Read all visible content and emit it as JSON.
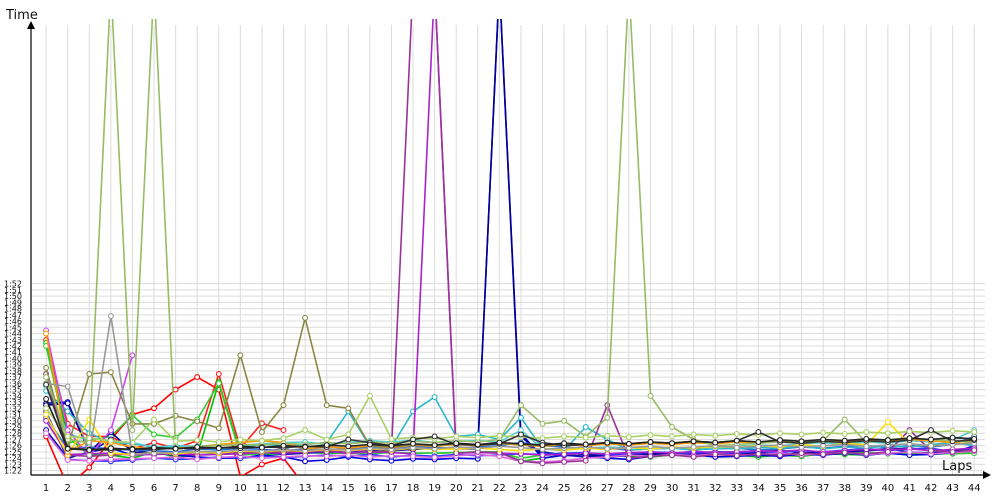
{
  "chart_data": {
    "type": "line",
    "title": "",
    "xlabel": "Laps",
    "ylabel": "Time",
    "x_ticks": [
      "1",
      "2",
      "3",
      "4",
      "5",
      "6",
      "7",
      "8",
      "9",
      "10",
      "11",
      "12",
      "13",
      "14",
      "15",
      "16",
      "17",
      "18",
      "19",
      "20",
      "21",
      "22",
      "23",
      "24",
      "25",
      "26",
      "27",
      "28",
      "29",
      "30",
      "31",
      "32",
      "33",
      "34",
      "35",
      "36",
      "37",
      "38",
      "39",
      "40",
      "41",
      "42",
      "43",
      "44"
    ],
    "y_ticks": [
      "1:22",
      "1:23",
      "1:24",
      "1:25",
      "1:26",
      "1:27",
      "1:28",
      "1:29",
      "1:30",
      "1:31",
      "1:32",
      "1:33",
      "1:34",
      "1:35",
      "1:36",
      "1:37",
      "1:38",
      "1:39",
      "1:40",
      "1:41",
      "1:42",
      "1:43",
      "1:44",
      "1:45",
      "1:46",
      "1:47",
      "1:48",
      "1:49",
      "1:50",
      "1:51",
      "1:52"
    ],
    "xlim": [
      0.3,
      44.5
    ],
    "ylim_seconds": [
      81.3,
      153.5
    ],
    "grid": true,
    "legend": "none",
    "units": "lap time in seconds",
    "series": [
      {
        "color": "#ff0000",
        "values": [
          87.5,
          79.5,
          82.5,
          87,
          91,
          92,
          95,
          97,
          95,
          81,
          83,
          84,
          79.5,
          79,
          79,
          77.5,
          78,
          77.5,
          78,
          78,
          78,
          77.5,
          77.8,
          77.8,
          78,
          78,
          77.5,
          77.5,
          78,
          77.8,
          78,
          77.5,
          77.8,
          77.5,
          77.5,
          78,
          77.5,
          78,
          77.8,
          77.5,
          78,
          77.5,
          78,
          78
        ]
      },
      {
        "color": "#ff2020",
        "values": [
          103,
          89.5,
          87.5,
          87.5,
          85.5,
          86.5,
          85.6,
          86.8,
          97.5,
          85.6,
          89.6,
          88.5,
          null,
          null,
          null,
          null,
          null,
          null,
          null,
          null,
          null,
          null,
          null,
          null,
          null,
          null,
          null,
          null,
          null,
          null,
          null,
          null,
          null,
          null,
          null,
          null,
          null,
          null,
          null,
          null,
          null,
          null,
          null,
          null
        ]
      },
      {
        "color": "#00c000",
        "values": [
          102.5,
          87.5,
          84.5,
          84.5,
          84,
          85,
          84.2,
          84.5,
          96.2,
          84.8,
          84.6,
          84.7,
          84.9,
          84.8,
          84.8,
          85,
          84.9,
          84.8,
          84.8,
          84.9,
          85,
          85,
          83.5,
          84,
          84.5,
          84.3,
          84.6,
          84.3,
          84.2,
          84.5,
          84.6,
          84.7,
          84.5,
          84.2,
          84.5,
          84.3,
          84.7,
          84.6,
          84.5,
          84.8,
          84.8,
          84.6,
          84.8,
          84.9
        ]
      },
      {
        "color": "#33cc33",
        "values": [
          102,
          86.5,
          86.8,
          87.5,
          90.9,
          87.8,
          87.3,
          90.2,
          96,
          84.5,
          84.7,
          84.8,
          85,
          84.9,
          84.8,
          84.7,
          84.9,
          84.8,
          84.8,
          84.9,
          85,
          84.9,
          84,
          84.5,
          84.6,
          84.8,
          84.7,
          84.5,
          84.6,
          84.7,
          84.6,
          84.6,
          84.5,
          84.8,
          84.7,
          84.6,
          84.6,
          84.8,
          84.9,
          84.7,
          84.8,
          84.9,
          84.7,
          84.8
        ]
      },
      {
        "color": "#0000dd",
        "values": [
          92.8,
          93,
          85,
          85.6,
          84.5,
          84.8,
          84.5,
          84.2,
          84,
          84,
          84.5,
          84.2,
          83.5,
          83.7,
          84.2,
          83.8,
          83.6,
          83.9,
          83.8,
          84,
          83.9,
          null,
          88,
          84,
          84.5,
          84.2,
          84,
          83.8,
          84.3,
          84.6,
          84.5,
          84.2,
          84.3,
          84.5,
          84.3,
          84.6,
          84.5,
          84.8,
          84.5,
          84.8,
          84.5,
          84.6,
          84.9,
          86
        ]
      },
      {
        "color": "#1010aa",
        "values": [
          88.5,
          84,
          85,
          87,
          85.5,
          84.6,
          84.9,
          85,
          84.8,
          84.7,
          85,
          84.6,
          84.8,
          85,
          84.9,
          85.2,
          85.5,
          85.6,
          85.6,
          85.5,
          85.6,
          160,
          86.5,
          85,
          84.5,
          84.3,
          84.2,
          84.4,
          84.6,
          84.8,
          84.9,
          85,
          85,
          85.2,
          85.3,
          84.8,
          85,
          85.1,
          85.3,
          85.5,
          85,
          84.8,
          85.2,
          85.5
        ]
      },
      {
        "color": "#000099",
        "values": [
          92.5,
          92.8,
          85,
          88.2,
          85,
          84.8,
          84.9,
          85,
          84.7,
          84.8,
          85,
          85.5,
          85,
          85.2,
          85.6,
          85.4,
          85.2,
          85.4,
          85.6,
          85.5,
          85.5,
          160,
          87.5,
          84.5,
          84.8,
          84.6,
          84.3,
          84.6,
          84.9,
          84.5,
          84.6,
          84.8,
          84.6,
          84.9,
          84.5,
          84.8,
          84.9,
          85,
          85.2,
          85.4,
          85.6,
          85.2,
          85,
          85.3
        ]
      },
      {
        "color": "#3333ff",
        "values": [
          91.5,
          83.8,
          83.6,
          83.5,
          83.7,
          84,
          83.8,
          83.9,
          84.2,
          84,
          84.3,
          84.1,
          84.3,
          84.5,
          84.3,
          84.6,
          84.2,
          84.5,
          84.3,
          84.6,
          84.4,
          84.5,
          84.7,
          84.6,
          84.8,
          84.9,
          84.5,
          84.7,
          85,
          84.9,
          84.8,
          85,
          84.8,
          85.1,
          84.9,
          85.2,
          85,
          85.3,
          85.5,
          85.2,
          85.5,
          85.6,
          85,
          85.4
        ]
      },
      {
        "color": "#2a6bd6",
        "values": [
          90.5,
          85.5,
          85.8,
          85.5,
          85.3,
          85.2,
          85,
          85.5,
          85.3,
          85.6,
          85.4,
          85.2,
          85.5,
          85.3,
          85.6,
          85.8,
          85.6,
          85.9,
          85.7,
          85.6,
          85.8,
          86,
          86.5,
          86,
          85.8,
          85.5,
          85.6,
          85.3,
          85.5,
          85.6,
          85.4,
          85.5,
          85.6,
          85.3,
          85.5,
          85.8,
          85.6,
          85.9,
          86,
          85.7,
          86,
          85.8,
          86.2,
          87.5
        ]
      },
      {
        "color": "#2ab8c8",
        "values": [
          94.8,
          91.5,
          88,
          86.5,
          86.3,
          85.8,
          85.8,
          85.6,
          85.5,
          85.8,
          86.2,
          86,
          86.2,
          86.5,
          91.5,
          85.9,
          85.8,
          91.5,
          93.8,
          87.5,
          87.8,
          87,
          90.5,
          85.5,
          85.2,
          89,
          87,
          85.3,
          85.5,
          85.6,
          85.3,
          85.6,
          85.5,
          85.7,
          85.6,
          85.9,
          85.5,
          85.8,
          85.6,
          86,
          85.8,
          86.2,
          86.5,
          86
        ]
      },
      {
        "color": "#55cccc",
        "values": [
          95.5,
          88,
          86.8,
          86.5,
          86.5,
          85.8,
          86,
          85.9,
          86.2,
          86.1,
          86.3,
          86.5,
          86.6,
          86.2,
          86.5,
          86.8,
          86.6,
          86.9,
          86.5,
          86.7,
          86.8,
          86.6,
          88.5,
          85.5,
          85.3,
          85.6,
          85.8,
          85.6,
          85.9,
          85.5,
          85.8,
          85.6,
          85.9,
          86.1,
          86,
          86.3,
          86.5,
          86.2,
          86.6,
          86.4,
          86.8,
          86.6,
          86.9,
          88.5
        ]
      },
      {
        "color": "#aa22cc",
        "values": [
          90,
          84.6,
          84.7,
          84.8,
          84.5,
          84.6,
          84.7,
          84.5,
          84.6,
          84.7,
          84.9,
          84.8,
          85,
          85.1,
          84.8,
          85,
          84.9,
          84.7,
          160,
          84.8,
          84.9,
          84.8,
          84.7,
          84.5,
          84.6,
          84.8,
          84.7,
          84.9,
          85,
          84.8,
          85.1,
          84.9,
          85,
          85.2,
          85.1,
          85.3,
          85,
          85.2,
          85.4,
          85.3,
          85.5,
          85.2,
          85.4,
          85.6
        ]
      },
      {
        "color": "#cc44ee",
        "values": [
          104.5,
          88.5,
          84.3,
          88.5,
          100.5,
          null,
          null,
          null,
          null,
          null,
          null,
          null,
          null,
          null,
          null,
          null,
          null,
          null,
          null,
          null,
          null,
          null,
          null,
          null,
          null,
          null,
          null,
          null,
          null,
          null,
          null,
          null,
          null,
          null,
          null,
          null,
          null,
          null,
          null,
          null,
          null,
          null,
          null,
          null
        ]
      },
      {
        "color": "#dd66dd",
        "values": [
          88,
          83.7,
          83.6,
          83.8,
          83.9,
          84,
          84.2,
          83.8,
          84.1,
          84.3,
          84,
          84.2,
          84.4,
          84.3,
          84.5,
          84.2,
          84.4,
          84.3,
          84.1,
          84.4,
          84.6,
          84.3,
          83.5,
          83.4,
          83.6,
          84,
          84.2,
          84.5,
          84.3,
          84.6,
          84.4,
          84.7,
          84.5,
          84.6,
          84.8,
          84.5,
          84.7,
          84.9,
          84.6,
          84.8,
          85,
          84.7,
          84.9,
          85.1
        ]
      },
      {
        "color": "#993399",
        "values": [
          97.5,
          84.5,
          84.3,
          84.5,
          84.7,
          84.8,
          84.6,
          84.9,
          85,
          84.8,
          85.1,
          84.9,
          85.2,
          85,
          85.3,
          85.1,
          85,
          160,
          160,
          84.8,
          85,
          84.9,
          83.5,
          83.2,
          83.4,
          83.6,
          92.5,
          84,
          84.3,
          84.5,
          84.2,
          84.6,
          84.4,
          84.7,
          84.5,
          84.8,
          84.6,
          84.9,
          84.7,
          85,
          88.5,
          85.2,
          85,
          85.3
        ]
      },
      {
        "color": "#ffdd00",
        "values": [
          91,
          84.5,
          90.2,
          84.8,
          84.6,
          84.9,
          84.7,
          85,
          84.8,
          85.2,
          85,
          85.3,
          85.1,
          85.4,
          85.2,
          85.5,
          85.3,
          85.6,
          85.4,
          85.5,
          85.6,
          85.4,
          85.2,
          85.5,
          85.3,
          85.6,
          85.4,
          85.7,
          85.5,
          85.8,
          85.6,
          85.9,
          85.7,
          86,
          85.8,
          86.2,
          85.9,
          86.4,
          86.1,
          89.8,
          86.3,
          86,
          86.2,
          86.5
        ]
      },
      {
        "color": "#ff9900",
        "values": [
          104,
          85,
          86.8,
          86.5,
          85.8,
          85.5,
          85.6,
          85.8,
          86.2,
          86.5,
          86.8,
          86.5,
          85.5,
          85.8,
          85.6,
          86,
          85.7,
          86.1,
          85.9,
          86.2,
          86,
          86.4,
          86.1,
          85.9,
          86.2,
          86,
          86.3,
          86.1,
          86.4,
          86.2,
          86.5,
          86.3,
          86.6,
          86.4,
          86.7,
          86.5,
          86.8,
          86.6,
          86.9,
          86.7,
          87,
          86.8,
          86.5,
          86.8
        ]
      },
      {
        "color": "#888844",
        "values": [
          98.5,
          85.8,
          97.5,
          97.8,
          89.5,
          89.5,
          90.8,
          89.9,
          88.8,
          100.5,
          88.2,
          92.5,
          106.5,
          92.5,
          92,
          86,
          85.8,
          86.2,
          86,
          86.3,
          86.1,
          86.5,
          86.2,
          86,
          86.4,
          86.1,
          86.5,
          86.3,
          86.6,
          86.4,
          86.7,
          86.5,
          86.8,
          86.6,
          86.9,
          86.7,
          87,
          86.8,
          87.1,
          86.9,
          87.2,
          87,
          87.3,
          87.1
        ]
      },
      {
        "color": "#99bb66",
        "values": [
          97,
          87,
          86.5,
          160,
          88.5,
          160,
          85.5,
          85.8,
          86,
          86.2,
          86.1,
          86.4,
          86.2,
          86.5,
          86.3,
          86.6,
          86.4,
          86.7,
          86.5,
          86.8,
          86.6,
          87,
          92.5,
          89.5,
          90,
          87.5,
          90.5,
          160,
          94,
          89,
          87,
          86,
          86.2,
          86.4,
          86.6,
          86.5,
          86.8,
          90.2,
          86.5,
          87,
          87.2,
          87,
          86.8,
          86.5
        ]
      },
      {
        "color": "#aad066",
        "values": [
          92,
          87.5,
          87.2,
          86.8,
          86.5,
          90.2,
          86.7,
          86.9,
          86.6,
          87,
          86.8,
          87.2,
          88.5,
          87,
          87.8,
          94,
          87.1,
          87.3,
          87.1,
          87.5,
          87.3,
          87.6,
          87.4,
          87.2,
          87.5,
          87.3,
          87.6,
          87.4,
          87.7,
          87.5,
          87.8,
          87.6,
          87.9,
          87.7,
          88,
          87.8,
          88.1,
          87.9,
          88.2,
          88,
          88.3,
          88.1,
          88.4,
          88.2
        ]
      },
      {
        "color": "#999999",
        "values": [
          96,
          95.5,
          84.5,
          106.8,
          84.6,
          84.8,
          84.9,
          85.1,
          85,
          85.3,
          85.1,
          85.4,
          85.2,
          85.5,
          85.3,
          85.6,
          85.4,
          85.7,
          85.5,
          85.8,
          85.6,
          85.9,
          85.7,
          85.4,
          85.6,
          85.8,
          85.5,
          85.7,
          85.9,
          85.6,
          85.8,
          86,
          85.7,
          85.9,
          86.1,
          85.8,
          86,
          86.2,
          85.9,
          86.1,
          86.3,
          86,
          86.2,
          86.4
        ]
      },
      {
        "color": "#333333",
        "values": [
          95.8,
          85.6,
          85.4,
          85.3,
          85.5,
          85.4,
          85.6,
          85.5,
          85.7,
          85.6,
          85.8,
          85.7,
          85.9,
          85.8,
          87,
          86.5,
          86,
          87,
          87.5,
          86.2,
          86.1,
          86.3,
          87.8,
          86.5,
          86,
          86.2,
          86.5,
          86.3,
          86.6,
          86.4,
          86.7,
          86.5,
          86.8,
          88.2,
          86.6,
          86.4,
          86.7,
          86.5,
          86.8,
          86.6,
          86.9,
          88.5,
          86.7,
          86.9
        ]
      },
      {
        "color": "#222222",
        "values": [
          93.5,
          85.5,
          85.3,
          85.6,
          85.4,
          85.7,
          85.5,
          85.8,
          85.6,
          85.9,
          85.7,
          86,
          85.8,
          86.1,
          85.9,
          86.2,
          86,
          86.3,
          86.1,
          86.4,
          86.2,
          86.5,
          86.3,
          86.1,
          86.4,
          86.2,
          86.5,
          86.3,
          86.6,
          86.4,
          86.7,
          86.5,
          86.8,
          86.6,
          86.9,
          86.7,
          87,
          86.8,
          87.1,
          86.9,
          87.2,
          87,
          87.3,
          87.1
        ]
      }
    ]
  }
}
